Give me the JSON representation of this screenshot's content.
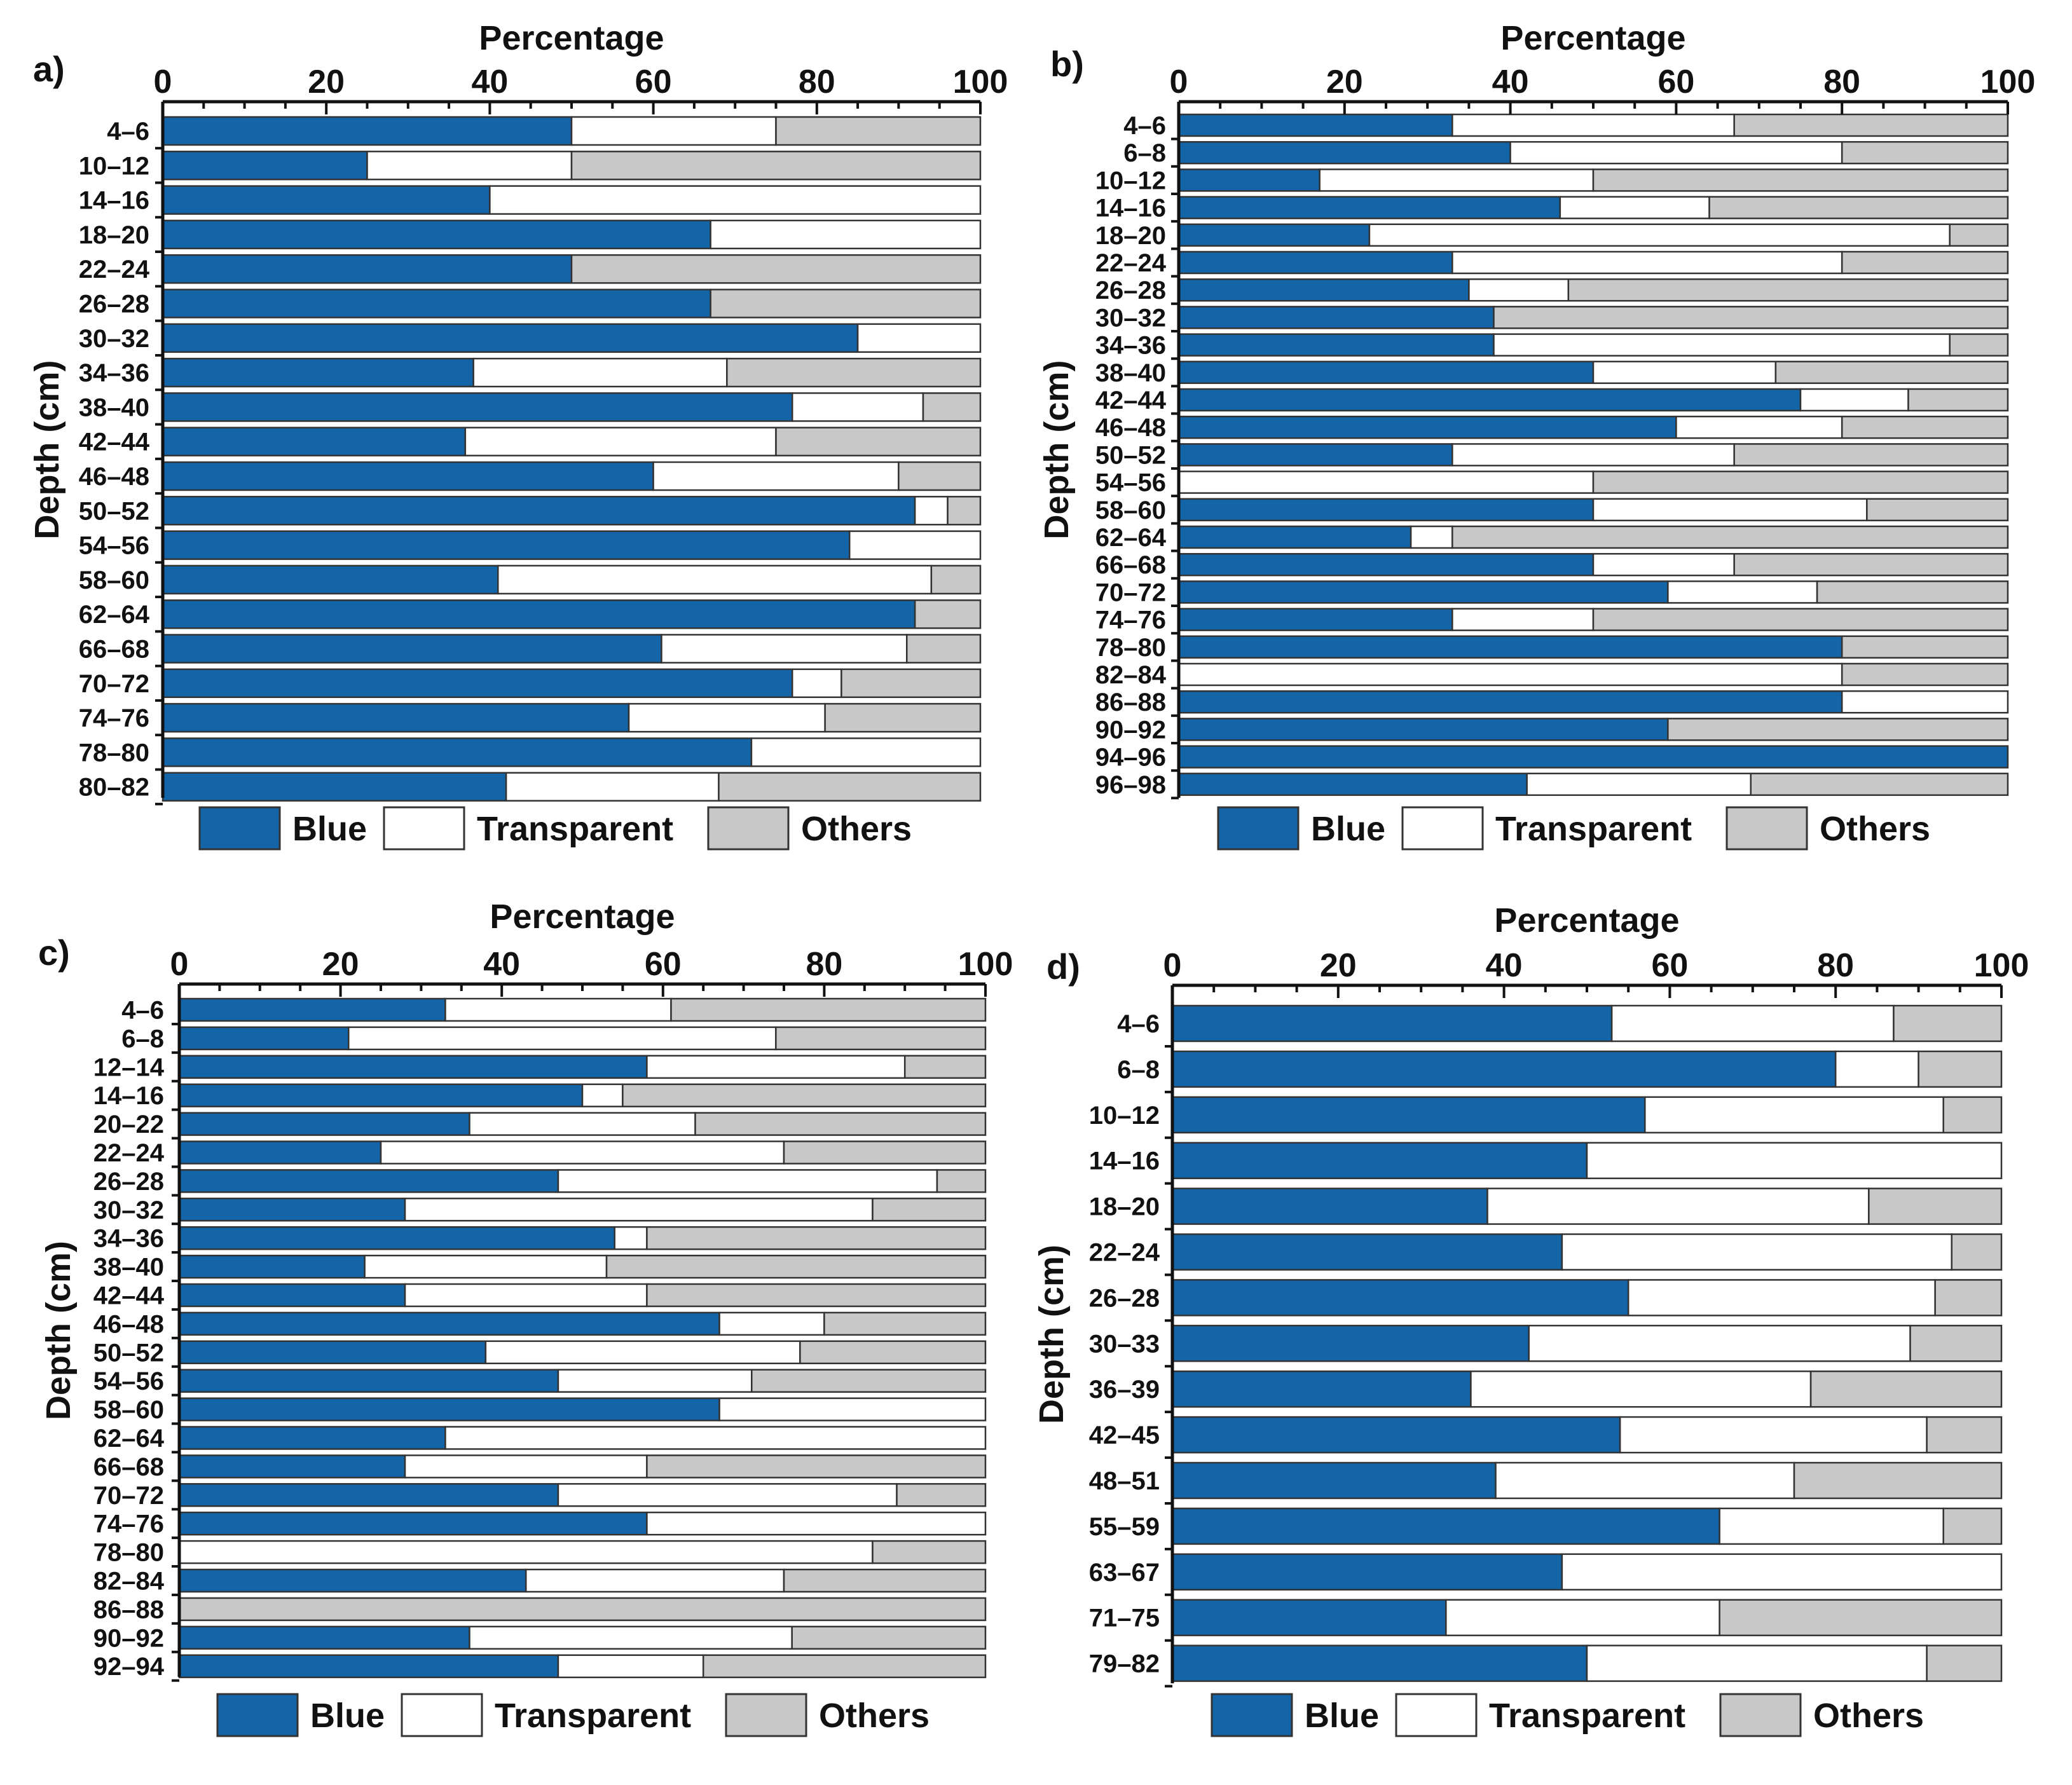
{
  "colors": {
    "blue": "#1464a8",
    "transparent": "#ffffff",
    "others": "#c8c8c8"
  },
  "chart_data": [
    {
      "panel": "a)",
      "type": "bar",
      "orientation": "horizontal",
      "stacked": true,
      "title": "Percentage",
      "xlabel": "Percentage",
      "ylabel": "Depth (cm)",
      "xlim": [
        0,
        100
      ],
      "xticks": [
        "0",
        "20",
        "40",
        "60",
        "80",
        "100"
      ],
      "legend": [
        "Blue",
        "Transparent",
        "Others"
      ],
      "categories": [
        "4–6",
        "10–12",
        "14–16",
        "18–20",
        "22–24",
        "26–28",
        "30–32",
        "34–36",
        "38–40",
        "42–44",
        "46–48",
        "50–52",
        "54–56",
        "58–60",
        "62–64",
        "66–68",
        "70–72",
        "74–76",
        "78–80",
        "80–82"
      ],
      "series": [
        {
          "name": "Blue",
          "values": [
            50,
            25,
            40,
            67,
            50,
            67,
            85,
            38,
            77,
            37,
            60,
            92,
            84,
            41,
            92,
            61,
            77,
            57,
            72,
            42
          ]
        },
        {
          "name": "Transparent",
          "values": [
            25,
            25,
            60,
            33,
            0,
            0,
            15,
            31,
            16,
            38,
            30,
            4,
            16,
            53,
            0,
            30,
            6,
            24,
            28,
            26
          ]
        },
        {
          "name": "Others",
          "values": [
            25,
            50,
            0,
            0,
            50,
            33,
            0,
            31,
            7,
            25,
            10,
            4,
            0,
            6,
            8,
            9,
            17,
            19,
            0,
            32
          ]
        }
      ]
    },
    {
      "panel": "b)",
      "type": "bar",
      "orientation": "horizontal",
      "stacked": true,
      "title": "Percentage",
      "xlabel": "Percentage",
      "ylabel": "Depth (cm)",
      "xlim": [
        0,
        100
      ],
      "xticks": [
        "0",
        "20",
        "40",
        "60",
        "80",
        "100"
      ],
      "legend": [
        "Blue",
        "Transparent",
        "Others"
      ],
      "categories": [
        "4–6",
        "6–8",
        "10–12",
        "14–16",
        "18–20",
        "22–24",
        "26–28",
        "30–32",
        "34–36",
        "38–40",
        "42–44",
        "46–48",
        "50–52",
        "54–56",
        "58–60",
        "62–64",
        "66–68",
        "70–72",
        "74–76",
        "78–80",
        "82–84",
        "86–88",
        "90–92",
        "94–96",
        "96–98"
      ],
      "series": [
        {
          "name": "Blue",
          "values": [
            33,
            40,
            17,
            46,
            23,
            33,
            35,
            38,
            38,
            50,
            75,
            60,
            33,
            0,
            50,
            28,
            50,
            59,
            33,
            80,
            0,
            80,
            59,
            100,
            42
          ]
        },
        {
          "name": "Transparent",
          "values": [
            34,
            40,
            33,
            18,
            70,
            47,
            12,
            0,
            55,
            22,
            13,
            20,
            34,
            50,
            33,
            5,
            17,
            18,
            17,
            0,
            80,
            20,
            0,
            0,
            27
          ]
        },
        {
          "name": "Others",
          "values": [
            33,
            20,
            50,
            36,
            7,
            20,
            53,
            62,
            7,
            28,
            12,
            20,
            33,
            50,
            17,
            67,
            33,
            23,
            50,
            20,
            20,
            0,
            41,
            0,
            31
          ]
        }
      ]
    },
    {
      "panel": "c)",
      "type": "bar",
      "orientation": "horizontal",
      "stacked": true,
      "title": "Percentage",
      "xlabel": "Percentage",
      "ylabel": "Depth (cm)",
      "xlim": [
        0,
        100
      ],
      "xticks": [
        "0",
        "20",
        "40",
        "60",
        "80",
        "100"
      ],
      "legend": [
        "Blue",
        "Transparent",
        "Others"
      ],
      "categories": [
        "4–6",
        "6–8",
        "12–14",
        "14–16",
        "20–22",
        "22–24",
        "26–28",
        "30–32",
        "34–36",
        "38–40",
        "42–44",
        "46–48",
        "50–52",
        "54–56",
        "58–60",
        "62–64",
        "66–68",
        "70–72",
        "74–76",
        "78–80",
        "82–84",
        "86–88",
        "90–92",
        "92–94"
      ],
      "series": [
        {
          "name": "Blue",
          "values": [
            33,
            21,
            58,
            50,
            36,
            25,
            47,
            28,
            54,
            23,
            28,
            67,
            38,
            47,
            67,
            33,
            28,
            47,
            58,
            0,
            43,
            0,
            36,
            47
          ]
        },
        {
          "name": "Transparent",
          "values": [
            28,
            53,
            32,
            5,
            28,
            50,
            47,
            58,
            4,
            30,
            30,
            13,
            39,
            24,
            33,
            67,
            30,
            42,
            42,
            86,
            32,
            0,
            40,
            18
          ]
        },
        {
          "name": "Others",
          "values": [
            39,
            26,
            10,
            45,
            36,
            25,
            6,
            14,
            42,
            47,
            42,
            20,
            23,
            29,
            0,
            0,
            42,
            11,
            0,
            14,
            25,
            100,
            24,
            35
          ]
        }
      ]
    },
    {
      "panel": "d)",
      "type": "bar",
      "orientation": "horizontal",
      "stacked": true,
      "title": "Percentage",
      "xlabel": "Percentage",
      "ylabel": "Depth (cm)",
      "xlim": [
        0,
        100
      ],
      "xticks": [
        "0",
        "20",
        "40",
        "60",
        "80",
        "100"
      ],
      "legend": [
        "Blue",
        "Transparent",
        "Others"
      ],
      "categories": [
        "4–6",
        "6–8",
        "10–12",
        "14–16",
        "18–20",
        "22–24",
        "26–28",
        "30–33",
        "36–39",
        "42–45",
        "48–51",
        "55–59",
        "63–67",
        "71–75",
        "79–82"
      ],
      "series": [
        {
          "name": "Blue",
          "values": [
            53,
            80,
            57,
            50,
            38,
            47,
            55,
            43,
            36,
            54,
            39,
            66,
            47,
            33,
            50
          ]
        },
        {
          "name": "Transparent",
          "values": [
            34,
            10,
            36,
            50,
            46,
            47,
            37,
            46,
            41,
            37,
            36,
            27,
            53,
            33,
            41
          ]
        },
        {
          "name": "Others",
          "values": [
            13,
            10,
            7,
            0,
            16,
            6,
            8,
            11,
            23,
            9,
            25,
            7,
            0,
            34,
            9
          ]
        }
      ]
    }
  ]
}
